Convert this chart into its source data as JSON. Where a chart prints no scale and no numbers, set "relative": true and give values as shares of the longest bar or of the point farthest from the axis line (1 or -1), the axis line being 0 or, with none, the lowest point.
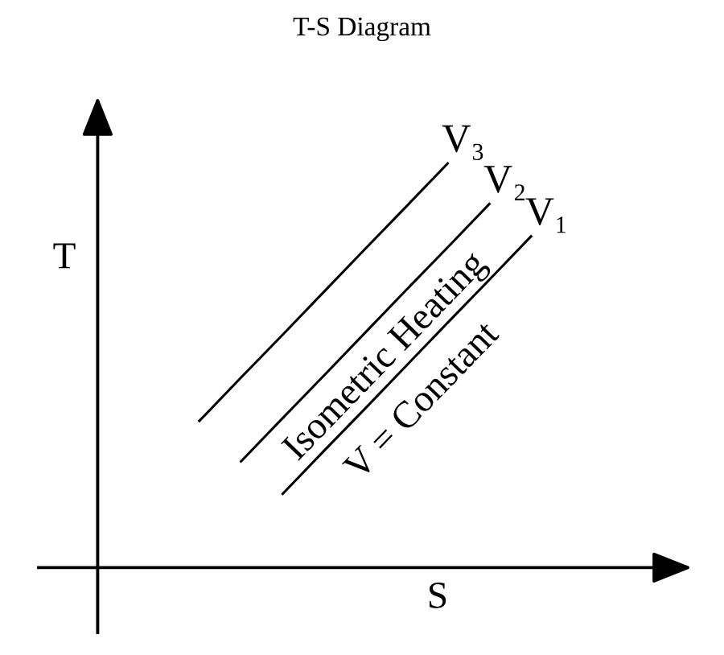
{
  "chart_data": {
    "type": "line",
    "title": "T-S Diagram",
    "xlabel": "S",
    "ylabel": "T",
    "relative": true,
    "categories": [
      null,
      null,
      null,
      null,
      null,
      null,
      null,
      null,
      null
    ],
    "series": [
      {
        "name": "V₃",
        "color": "#000000",
        "values": [
          0.36,
          0.467,
          0.573,
          0.68,
          0.787,
          0.893,
          1.0,
          null,
          null
        ]
      },
      {
        "name": "V₂",
        "color": "#000000",
        "values": [
          null,
          0.26,
          0.367,
          0.473,
          0.58,
          0.687,
          0.793,
          0.9,
          null
        ]
      },
      {
        "name": "V₁",
        "color": "#000000",
        "values": [
          null,
          null,
          0.18,
          0.287,
          0.393,
          0.5,
          0.607,
          0.713,
          0.82
        ]
      }
    ],
    "annotations": [
      "Isometric Heating",
      "V = Constant"
    ]
  }
}
